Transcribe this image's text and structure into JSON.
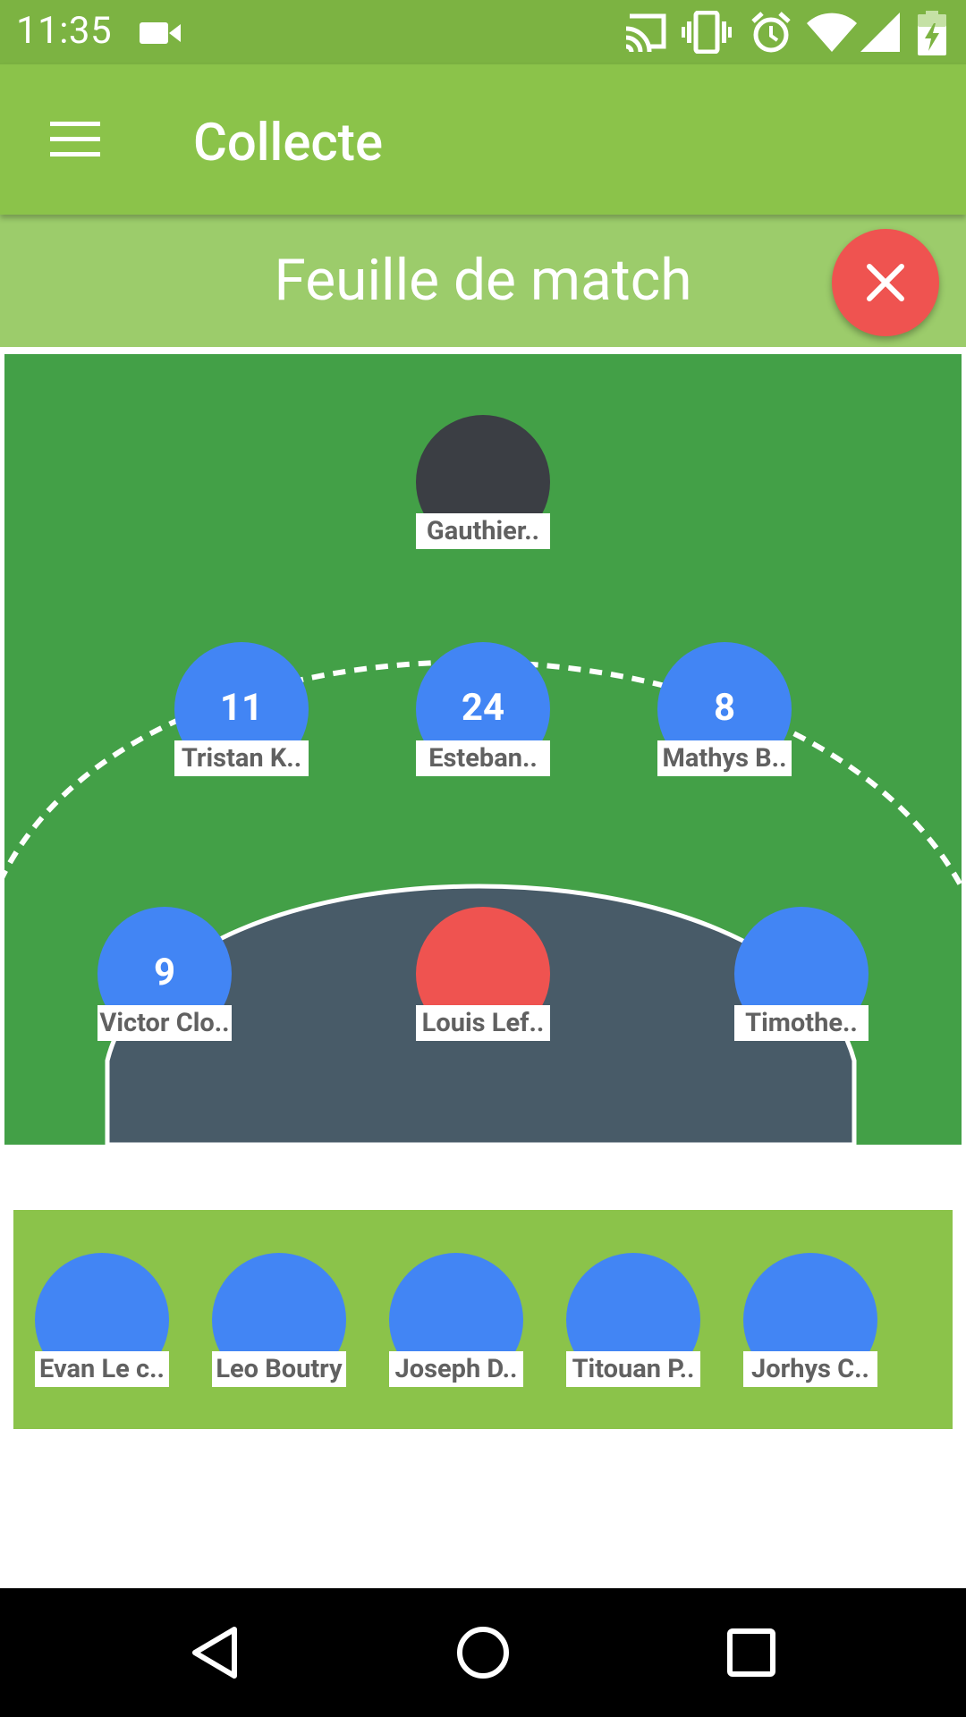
{
  "status_bar": {
    "time": "11:35",
    "icons": [
      "video-camera-icon",
      "cast-icon",
      "vibrate-icon",
      "alarm-icon",
      "wifi-icon",
      "signal-icon",
      "battery-charging-icon"
    ]
  },
  "app_bar": {
    "title": "Collecte",
    "menu_icon": "hamburger-menu-icon"
  },
  "subheader": {
    "title": "Feuille de match",
    "close_icon": "close-icon"
  },
  "colors": {
    "status_bar": "#7cb342",
    "app_bar": "#8bc34a",
    "subheader": "#9ccc6b",
    "field": "#43a047",
    "zone": "#485b68",
    "player_blue": "#4285f4",
    "player_red": "#ef5350",
    "goalkeeper_dark": "#3b3e44",
    "bench": "#8bc34a"
  },
  "field": {
    "players": [
      {
        "number": "",
        "name": "Gauthier..",
        "color": "dark"
      },
      {
        "number": "11",
        "name": "Tristan K..",
        "color": "blue"
      },
      {
        "number": "24",
        "name": "Esteban..",
        "color": "blue"
      },
      {
        "number": "8",
        "name": "Mathys B..",
        "color": "blue"
      },
      {
        "number": "9",
        "name": "Victor Clo..",
        "color": "blue"
      },
      {
        "number": "",
        "name": "Louis Lef..",
        "color": "red"
      },
      {
        "number": "",
        "name": "Timothe..",
        "color": "blue"
      }
    ]
  },
  "bench": {
    "players": [
      {
        "name": "Evan Le c.."
      },
      {
        "name": "Leo Boutry"
      },
      {
        "name": "Joseph D.."
      },
      {
        "name": "Titouan P.."
      },
      {
        "name": "Jorhys C.."
      }
    ]
  },
  "nav_bar": {
    "buttons": [
      "back-icon",
      "home-icon",
      "recents-icon"
    ]
  }
}
